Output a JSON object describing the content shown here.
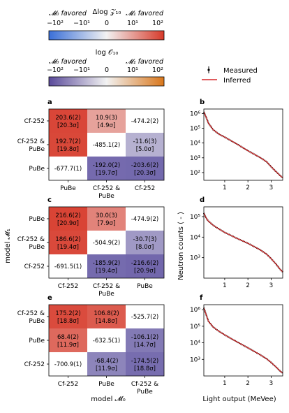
{
  "colorbars": [
    {
      "title": "Δlog 𝒵₁₀",
      "left_label": "𝓜₀ favored",
      "right_label": "𝓜₁ favored",
      "ticks": [
        "−10²",
        "−10¹",
        "0",
        "10¹",
        "10²"
      ],
      "colors": [
        "#3a6fd8",
        "#f2f2f2",
        "#d73a2a"
      ]
    },
    {
      "title": "log 𝒪₁₀",
      "left_label": "𝓜₀ favored",
      "right_label": "𝓜₁ favored",
      "ticks": [
        "−10²",
        "−10¹",
        "0",
        "10¹",
        "10²"
      ],
      "colors": [
        "#5a4a9a",
        "#f2f2f2",
        "#d9771c"
      ]
    }
  ],
  "legend": {
    "measured": "Measured",
    "inferred": "Inferred"
  },
  "axis_labels": {
    "ylabel_matrix": "model 𝓜₁",
    "xlabel_matrix": "model 𝓜₀",
    "ylabel_spectra": "Neutron counts ( - )",
    "xlabel_spectra": "Light output (MeVee)"
  },
  "chart_data": [
    {
      "type": "heatmap",
      "panel": "a",
      "x_categories": [
        "PuBe",
        "Cf-252 & PuBe",
        "Cf-252"
      ],
      "y_categories": [
        "Cf-252",
        "Cf-252 & PuBe",
        "PuBe"
      ],
      "cells": [
        [
          {
            "line1": "203.6(2)",
            "line2": "[20.3σ]",
            "value": 203.6
          },
          {
            "line1": "10.9(3)",
            "line2": "[4.9σ]",
            "value": 10.9
          },
          {
            "line1": "-474.2(2)",
            "line2": "",
            "value": 0
          }
        ],
        [
          {
            "line1": "192.7(2)",
            "line2": "[19.8σ]",
            "value": 192.7
          },
          {
            "line1": "-485.1(2)",
            "line2": "",
            "value": 0
          },
          {
            "line1": "-11.6(3)",
            "line2": "[5.0σ]",
            "value": -11.6
          }
        ],
        [
          {
            "line1": "-677.7(1)",
            "line2": "",
            "value": 0
          },
          {
            "line1": "-192.0(2)",
            "line2": "[19.7σ]",
            "value": -192.0
          },
          {
            "line1": "-203.6(2)",
            "line2": "[20.3σ]",
            "value": -203.6
          }
        ]
      ]
    },
    {
      "type": "heatmap",
      "panel": "c",
      "x_categories": [
        "Cf-252",
        "Cf-252 & PuBe",
        "PuBe"
      ],
      "y_categories": [
        "PuBe",
        "Cf-252 & PuBe",
        "Cf-252"
      ],
      "cells": [
        [
          {
            "line1": "216.6(2)",
            "line2": "[20.9σ]",
            "value": 216.6
          },
          {
            "line1": "30.0(3)",
            "line2": "[7.9σ]",
            "value": 30.0
          },
          {
            "line1": "-474.9(2)",
            "line2": "",
            "value": 0
          }
        ],
        [
          {
            "line1": "186.6(2)",
            "line2": "[19.4σ]",
            "value": 186.6
          },
          {
            "line1": "-504.9(2)",
            "line2": "",
            "value": 0
          },
          {
            "line1": "-30.7(3)",
            "line2": "[8.0σ]",
            "value": -30.7
          }
        ],
        [
          {
            "line1": "-691.5(1)",
            "line2": "",
            "value": 0
          },
          {
            "line1": "-185.9(2)",
            "line2": "[19.4σ]",
            "value": -185.9
          },
          {
            "line1": "-216.6(2)",
            "line2": "[20.9σ]",
            "value": -216.6
          }
        ]
      ]
    },
    {
      "type": "heatmap",
      "panel": "e",
      "x_categories": [
        "Cf-252",
        "PuBe",
        "Cf-252 & PuBe"
      ],
      "y_categories": [
        "Cf-252 & PuBe",
        "PuBe",
        "Cf-252"
      ],
      "cells": [
        [
          {
            "line1": "175.2(2)",
            "line2": "[18.8σ]",
            "value": 175.2
          },
          {
            "line1": "106.8(2)",
            "line2": "[14.8σ]",
            "value": 106.8
          },
          {
            "line1": "-525.7(2)",
            "line2": "",
            "value": 0
          }
        ],
        [
          {
            "line1": "68.4(2)",
            "line2": "[11.9σ]",
            "value": 68.4
          },
          {
            "line1": "-632.5(1)",
            "line2": "",
            "value": 0
          },
          {
            "line1": "-106.1(2)",
            "line2": "[14.7σ]",
            "value": -106.1
          }
        ],
        [
          {
            "line1": "-700.9(1)",
            "line2": "",
            "value": 0
          },
          {
            "line1": "-68.4(2)",
            "line2": "[11.9σ]",
            "value": -68.4
          },
          {
            "line1": "-174.5(2)",
            "line2": "[18.8σ]",
            "value": -174.5
          }
        ]
      ]
    },
    {
      "type": "line",
      "panel": "b",
      "log_y": true,
      "xlim": [
        0.1,
        3.5
      ],
      "ylim": [
        30,
        2000000
      ],
      "x_ticks": [
        "1",
        "2",
        "3"
      ],
      "y_ticks": [
        "10²",
        "10³",
        "10⁴",
        "10⁵",
        "10⁶"
      ],
      "x": [
        0.1,
        0.2,
        0.3,
        0.5,
        0.75,
        1.0,
        1.5,
        2.0,
        2.5,
        2.8,
        3.0,
        3.2,
        3.4,
        3.5
      ],
      "y": [
        1300000,
        550000,
        220000,
        80000,
        40000,
        25000,
        9000,
        3000,
        1100,
        550,
        250,
        120,
        60,
        45
      ]
    },
    {
      "type": "line",
      "panel": "d",
      "log_y": true,
      "xlim": [
        0.1,
        3.5
      ],
      "ylim": [
        100,
        300000
      ],
      "x_ticks": [
        "1",
        "2",
        "3"
      ],
      "y_ticks": [
        "10³",
        "10⁴",
        "10⁵"
      ],
      "x": [
        0.1,
        0.2,
        0.3,
        0.5,
        0.75,
        1.0,
        1.5,
        2.0,
        2.5,
        2.8,
        3.0,
        3.2,
        3.4,
        3.5
      ],
      "y": [
        150000,
        85000,
        60000,
        38000,
        25000,
        17000,
        9000,
        5000,
        2500,
        1500,
        900,
        500,
        260,
        200
      ]
    },
    {
      "type": "line",
      "panel": "f",
      "log_y": true,
      "xlim": [
        0.1,
        3.5
      ],
      "ylim": [
        100,
        2000000
      ],
      "x_ticks": [
        "1",
        "2",
        "3"
      ],
      "y_ticks": [
        "10³",
        "10⁴",
        "10⁵",
        "10⁶"
      ],
      "x": [
        0.1,
        0.2,
        0.3,
        0.5,
        0.75,
        1.0,
        1.5,
        2.0,
        2.5,
        2.8,
        3.0,
        3.2,
        3.4,
        3.5
      ],
      "y": [
        1300000,
        500000,
        200000,
        90000,
        50000,
        30000,
        12000,
        5000,
        2000,
        1100,
        650,
        360,
        190,
        150
      ]
    }
  ]
}
